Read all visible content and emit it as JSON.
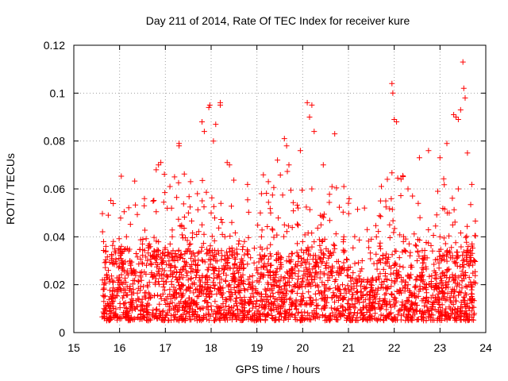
{
  "chart_data": {
    "type": "scatter",
    "title": "Day 211 of 2014, Rate Of TEC Index for receiver kure",
    "xlabel": "GPS time / hours",
    "ylabel": "ROTI / TECUs",
    "xlim": [
      15,
      24
    ],
    "ylim": [
      0,
      0.12
    ],
    "x_ticks": [
      15,
      16,
      17,
      18,
      19,
      20,
      21,
      22,
      23,
      24
    ],
    "x_tick_labels": [
      "15",
      "16",
      "17",
      "18",
      "19",
      "20",
      "21",
      "22",
      "23",
      "24"
    ],
    "y_ticks": [
      0,
      0.02,
      0.04,
      0.06,
      0.08,
      0.1,
      0.12
    ],
    "y_tick_labels": [
      "0",
      "0.02",
      "0.04",
      "0.06",
      "0.08",
      "0.1",
      "0.12"
    ],
    "grid": true,
    "marker": "+",
    "color": "#ff0000",
    "x_range_of_data": [
      15.62,
      23.78
    ],
    "series": [
      {
        "name": "ROTI",
        "points": [
          [
            15.65,
            0.038
          ],
          [
            15.7,
            0.036
          ],
          [
            15.9,
            0.034
          ],
          [
            16.05,
            0.033
          ],
          [
            16.15,
            0.04
          ],
          [
            16.5,
            0.037
          ],
          [
            16.65,
            0.037
          ],
          [
            16.85,
            0.07
          ],
          [
            16.9,
            0.071
          ],
          [
            17.1,
            0.061
          ],
          [
            17.2,
            0.065
          ],
          [
            17.3,
            0.079
          ],
          [
            17.3,
            0.078
          ],
          [
            17.55,
            0.063
          ],
          [
            17.7,
            0.058
          ],
          [
            17.8,
            0.088
          ],
          [
            17.85,
            0.084
          ],
          [
            17.95,
            0.094
          ],
          [
            17.97,
            0.095
          ],
          [
            18.05,
            0.08
          ],
          [
            18.1,
            0.087
          ],
          [
            18.2,
            0.096
          ],
          [
            18.2,
            0.095
          ],
          [
            18.35,
            0.071
          ],
          [
            18.4,
            0.07
          ],
          [
            18.6,
            0.037
          ],
          [
            18.8,
            0.034
          ],
          [
            19.1,
            0.058
          ],
          [
            19.25,
            0.063
          ],
          [
            19.45,
            0.072
          ],
          [
            19.6,
            0.081
          ],
          [
            19.65,
            0.078
          ],
          [
            19.7,
            0.07
          ],
          [
            19.95,
            0.076
          ],
          [
            20.1,
            0.096
          ],
          [
            20.15,
            0.09
          ],
          [
            20.2,
            0.095
          ],
          [
            20.25,
            0.084
          ],
          [
            20.45,
            0.07
          ],
          [
            20.7,
            0.083
          ],
          [
            20.9,
            0.061
          ],
          [
            21.0,
            0.054
          ],
          [
            21.35,
            0.052
          ],
          [
            21.5,
            0.039
          ],
          [
            21.7,
            0.055
          ],
          [
            21.85,
            0.064
          ],
          [
            21.95,
            0.104
          ],
          [
            21.97,
            0.1
          ],
          [
            22.0,
            0.089
          ],
          [
            22.05,
            0.088
          ],
          [
            22.15,
            0.064
          ],
          [
            22.3,
            0.06
          ],
          [
            22.4,
            0.057
          ],
          [
            22.55,
            0.073
          ],
          [
            22.75,
            0.076
          ],
          [
            22.95,
            0.059
          ],
          [
            23.0,
            0.073
          ],
          [
            23.15,
            0.079
          ],
          [
            23.3,
            0.091
          ],
          [
            23.35,
            0.09
          ],
          [
            23.4,
            0.089
          ],
          [
            23.45,
            0.093
          ],
          [
            23.5,
            0.113
          ],
          [
            23.52,
            0.102
          ],
          [
            23.55,
            0.098
          ],
          [
            23.6,
            0.075
          ],
          [
            23.7,
            0.037
          ],
          [
            23.75,
            0.03
          ],
          [
            15.66,
            0.01
          ],
          [
            15.72,
            0.005
          ],
          [
            15.8,
            0.015
          ],
          [
            15.9,
            0.008
          ],
          [
            16.0,
            0.02
          ],
          [
            16.1,
            0.012
          ],
          [
            16.2,
            0.006
          ],
          [
            16.3,
            0.018
          ],
          [
            16.4,
            0.014
          ],
          [
            16.55,
            0.01
          ],
          [
            16.7,
            0.025
          ],
          [
            16.8,
            0.008
          ],
          [
            16.95,
            0.03
          ],
          [
            17.05,
            0.015
          ],
          [
            17.15,
            0.04
          ],
          [
            17.25,
            0.022
          ],
          [
            17.4,
            0.012
          ],
          [
            17.5,
            0.035
          ],
          [
            17.6,
            0.009
          ],
          [
            17.7,
            0.028
          ],
          [
            17.8,
            0.045
          ],
          [
            17.9,
            0.018
          ],
          [
            18.0,
            0.05
          ],
          [
            18.1,
            0.03
          ],
          [
            18.2,
            0.006
          ],
          [
            18.3,
            0.04
          ],
          [
            18.4,
            0.02
          ],
          [
            18.5,
            0.011
          ],
          [
            18.6,
            0.025
          ],
          [
            18.7,
            0.008
          ],
          [
            18.8,
            0.018
          ],
          [
            18.9,
            0.012
          ],
          [
            19.0,
            0.027
          ],
          [
            19.1,
            0.04
          ],
          [
            19.2,
            0.015
          ],
          [
            19.3,
            0.05
          ],
          [
            19.4,
            0.025
          ],
          [
            19.5,
            0.008
          ],
          [
            19.6,
            0.045
          ],
          [
            19.7,
            0.03
          ],
          [
            19.8,
            0.012
          ],
          [
            19.9,
            0.052
          ],
          [
            20.0,
            0.038
          ],
          [
            20.1,
            0.02
          ],
          [
            20.2,
            0.06
          ],
          [
            20.3,
            0.01
          ],
          [
            20.4,
            0.045
          ],
          [
            20.5,
            0.028
          ],
          [
            20.6,
            0.006
          ],
          [
            20.7,
            0.035
          ],
          [
            20.8,
            0.018
          ],
          [
            20.9,
            0.04
          ],
          [
            21.0,
            0.012
          ],
          [
            21.1,
            0.025
          ],
          [
            21.2,
            0.008
          ],
          [
            21.3,
            0.03
          ],
          [
            21.4,
            0.016
          ],
          [
            21.5,
            0.01
          ],
          [
            21.6,
            0.022
          ],
          [
            21.7,
            0.035
          ],
          [
            21.8,
            0.014
          ],
          [
            21.9,
            0.045
          ],
          [
            22.0,
            0.028
          ],
          [
            22.1,
            0.009
          ],
          [
            22.2,
            0.038
          ],
          [
            22.3,
            0.02
          ],
          [
            22.4,
            0.012
          ],
          [
            22.5,
            0.03
          ],
          [
            22.6,
            0.008
          ],
          [
            22.7,
            0.018
          ],
          [
            22.8,
            0.01
          ],
          [
            22.9,
            0.025
          ],
          [
            23.0,
            0.04
          ],
          [
            23.1,
            0.015
          ],
          [
            23.2,
            0.05
          ],
          [
            23.3,
            0.022
          ],
          [
            23.4,
            0.06
          ],
          [
            23.5,
            0.03
          ],
          [
            23.6,
            0.012
          ],
          [
            23.7,
            0.02
          ],
          [
            23.75,
            0.008
          ]
        ]
      }
    ],
    "dense_band_description_values": {
      "typical_floor": 0.005,
      "typical_ceiling": 0.035,
      "sparse_segment_hours": [
        [
          18.8,
          19.0
        ],
        [
          21.0,
          21.6
        ],
        [
          22.4,
          22.6
        ]
      ]
    }
  }
}
